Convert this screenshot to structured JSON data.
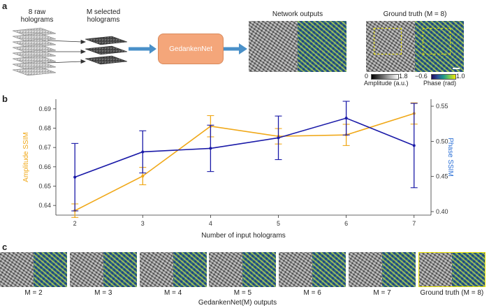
{
  "panel_a": {
    "letter": "a",
    "raw_label_1": "8 raw",
    "raw_label_2": "holograms",
    "selected_label_1": "M selected",
    "selected_label_2": "holograms",
    "network_name": "GedankenNet",
    "outputs_title": "Network outputs",
    "gt_title": "Ground truth (M = 8)",
    "amp_cbar_min": "0",
    "amp_cbar_max": "1.8",
    "amp_cbar_label": "Amplitude (a.u.)",
    "phase_cbar_min": "−0.6",
    "phase_cbar_max": "1.0",
    "phase_cbar_label": "Phase (rad)",
    "colors": {
      "arrow": "#4a90c8",
      "network": "#f4a67a",
      "highlight": "#e8e000"
    }
  },
  "panel_b": {
    "letter": "b"
  },
  "chart_data": {
    "type": "line",
    "x": [
      2,
      3,
      4,
      5,
      6,
      7
    ],
    "xlabel": "Number of input holograms",
    "ylabel_left": "Amplitude SSIM",
    "ylabel_right": "Phase SSIM",
    "ylim_left": [
      0.635,
      0.695
    ],
    "ylim_right": [
      0.395,
      0.56
    ],
    "yticks_left": [
      "0.64",
      "0.65",
      "0.66",
      "0.67",
      "0.68",
      "0.69"
    ],
    "yticks_right": [
      "0.40",
      "0.45",
      "0.50",
      "0.55"
    ],
    "xticks": [
      "2",
      "3",
      "4",
      "5",
      "6",
      "7"
    ],
    "series": [
      {
        "name": "Amplitude SSIM",
        "axis": "left",
        "color": "#f0a818",
        "values": [
          0.6373,
          0.6552,
          0.681,
          0.6758,
          0.6765,
          0.6876
        ],
        "errors": [
          0.0035,
          0.0045,
          0.0055,
          0.004,
          0.0055,
          0.0055
        ]
      },
      {
        "name": "Phase SSIM",
        "axis": "right",
        "color": "#1a1aa8",
        "values": [
          0.449,
          0.485,
          0.49,
          0.505,
          0.533,
          0.494
        ],
        "errors": [
          0.048,
          0.03,
          0.033,
          0.031,
          0.024,
          0.06
        ]
      }
    ]
  },
  "panel_c": {
    "letter": "c",
    "labels": [
      "M = 2",
      "M = 3",
      "M = 4",
      "M = 5",
      "M = 6",
      "M = 7",
      "Ground truth (M = 8)"
    ],
    "caption": "GedankenNet(M) outputs"
  }
}
